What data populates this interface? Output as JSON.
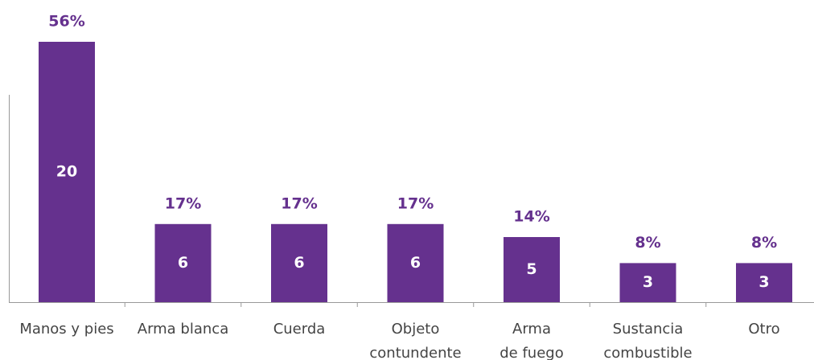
{
  "chart_data": {
    "type": "bar",
    "categories": [
      [
        "Manos y pies"
      ],
      [
        "Arma blanca"
      ],
      [
        "Cuerda"
      ],
      [
        "Objeto",
        "contundente"
      ],
      [
        "Arma",
        "de fuego"
      ],
      [
        "Sustancia",
        "combustible"
      ],
      [
        "Otro"
      ]
    ],
    "values": [
      20,
      6,
      6,
      6,
      5,
      3,
      3
    ],
    "percent_labels": [
      "56%",
      "17%",
      "17%",
      "17%",
      "14%",
      "8%",
      "8%"
    ],
    "color": "#65318e",
    "ylim": [
      0,
      20
    ]
  }
}
